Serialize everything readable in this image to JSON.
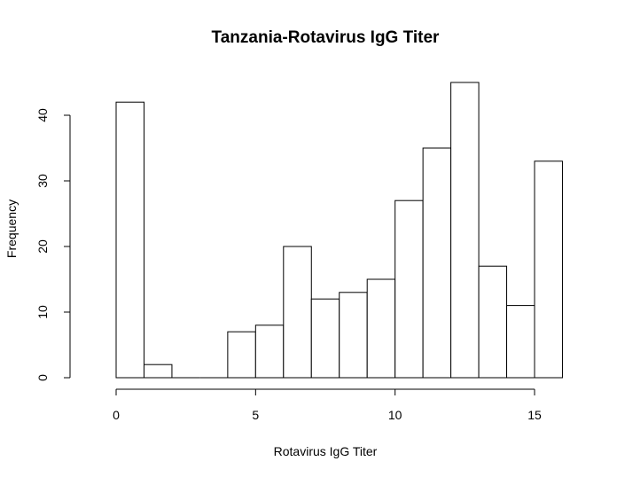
{
  "chart_data": {
    "type": "bar",
    "title": "Tanzania-Rotavirus IgG Titer",
    "xlabel": "Rotavirus IgG Titer",
    "ylabel": "Frequency",
    "bins": [
      {
        "x0": 0,
        "x1": 1,
        "count": 42
      },
      {
        "x0": 1,
        "x1": 2,
        "count": 2
      },
      {
        "x0": 2,
        "x1": 3,
        "count": 0
      },
      {
        "x0": 3,
        "x1": 4,
        "count": 0
      },
      {
        "x0": 4,
        "x1": 5,
        "count": 7
      },
      {
        "x0": 5,
        "x1": 6,
        "count": 8
      },
      {
        "x0": 6,
        "x1": 7,
        "count": 20
      },
      {
        "x0": 7,
        "x1": 8,
        "count": 12
      },
      {
        "x0": 8,
        "x1": 9,
        "count": 13
      },
      {
        "x0": 9,
        "x1": 10,
        "count": 15
      },
      {
        "x0": 10,
        "x1": 11,
        "count": 27
      },
      {
        "x0": 11,
        "x1": 12,
        "count": 35
      },
      {
        "x0": 12,
        "x1": 13,
        "count": 45
      },
      {
        "x0": 13,
        "x1": 14,
        "count": 17
      },
      {
        "x0": 14,
        "x1": 15,
        "count": 11
      },
      {
        "x0": 15,
        "x1": 16,
        "count": 33
      }
    ],
    "xlim": [
      0,
      16
    ],
    "ylim": [
      0,
      45
    ],
    "xticks": [
      0,
      5,
      10,
      15
    ],
    "yticks": [
      0,
      10,
      20,
      30,
      40
    ],
    "grid": false,
    "legend": "none"
  }
}
